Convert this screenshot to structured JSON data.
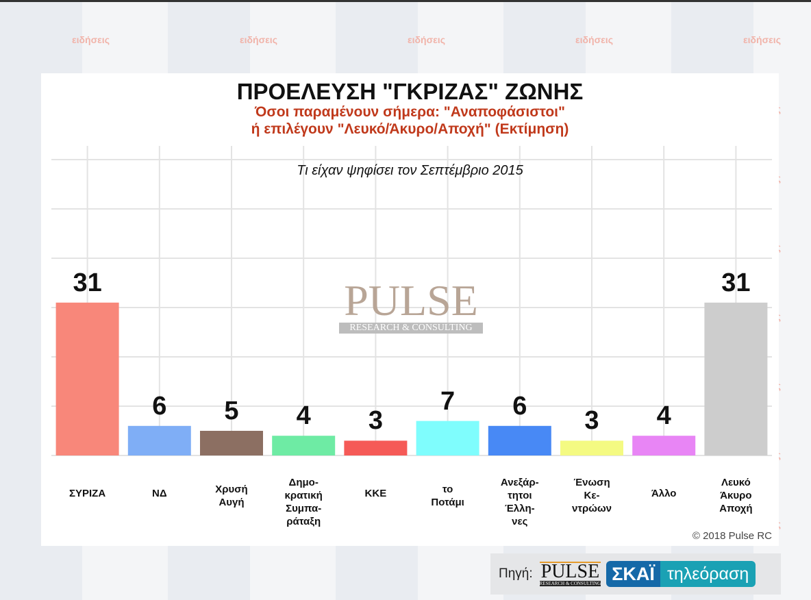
{
  "background": {
    "watermark_text": "ειδήσεις"
  },
  "chart_data": {
    "type": "bar",
    "title": "ΠΡΟΕΛΕΥΣΗ \"ΓΚΡΙΖΑΣ\" ΖΩΝΗΣ",
    "subtitle_lines": [
      "Όσοι παραμένουν σήμερα: \"Αναποφάσιστοι\"",
      "ή επιλέγουν \"Λευκό/Άκυρο/Αποχή\" (Εκτίμηση)"
    ],
    "inner_title": "Τι είχαν ψηφίσει τον Σεπτέμβριο 2015",
    "categories": [
      "ΣΥΡΙΖΑ",
      "ΝΔ",
      "Χρυσή\nΑυγή",
      "Δημο-\nκρατική\nΣυμπα-\nράταξη",
      "ΚΚΕ",
      "το\nΠοτάμι",
      "Ανεξάρ-\nτητοι\nΈλλη-\nνες",
      "Ένωση\nΚε-\nντρώων",
      "Άλλο",
      "Λευκό\nΆκυρο\nΑποχή"
    ],
    "values": [
      31,
      6,
      5,
      4,
      3,
      7,
      6,
      3,
      4,
      31
    ],
    "colors": [
      "#F8877A",
      "#7FAEF6",
      "#8C6F62",
      "#6EEBA4",
      "#F55A57",
      "#7FFDFD",
      "#4889F5",
      "#F4FA82",
      "#E885F5",
      "#CDCDCD"
    ],
    "ylim": [
      0,
      60
    ],
    "grid": true,
    "xlabel": "",
    "ylabel": ""
  },
  "watermark_logo": {
    "name": "PULSE",
    "tagline": "RESEARCH & CONSULTING"
  },
  "copyright": "© 2018 Pulse RC",
  "source": {
    "label": "Πηγή:",
    "pulse": "PULSE",
    "pulse_tag": "RESEARCH & CONSULTING",
    "skai": "ΣΚΑΪ",
    "tv": "τηλεόραση"
  }
}
